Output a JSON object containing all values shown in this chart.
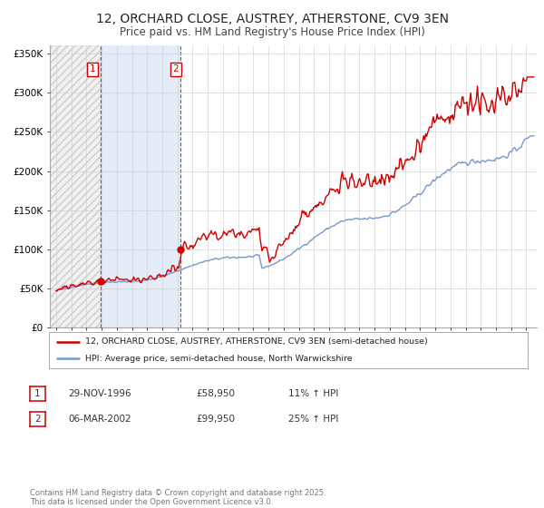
{
  "title": "12, ORCHARD CLOSE, AUSTREY, ATHERSTONE, CV9 3EN",
  "subtitle": "Price paid vs. HM Land Registry's House Price Index (HPI)",
  "title_fontsize": 10,
  "subtitle_fontsize": 8.5,
  "background_color": "#ffffff",
  "plot_bg_color": "#ffffff",
  "grid_color": "#cccccc",
  "red_line_color": "#cc0000",
  "blue_line_color": "#7799cc",
  "sale1_date": 1996.92,
  "sale1_price": 58950,
  "sale2_date": 2002.18,
  "sale2_price": 99950,
  "xmin": 1993.6,
  "xmax": 2025.7,
  "ymin": 0,
  "ymax": 360000,
  "yticks": [
    0,
    50000,
    100000,
    150000,
    200000,
    250000,
    300000,
    350000
  ],
  "ytick_labels": [
    "£0",
    "£50K",
    "£100K",
    "£150K",
    "£200K",
    "£250K",
    "£300K",
    "£350K"
  ],
  "legend_line1": "12, ORCHARD CLOSE, AUSTREY, ATHERSTONE, CV9 3EN (semi-detached house)",
  "legend_line2": "HPI: Average price, semi-detached house, North Warwickshire",
  "table_row1": [
    "1",
    "29-NOV-1996",
    "£58,950",
    "11% ↑ HPI"
  ],
  "table_row2": [
    "2",
    "06-MAR-2002",
    "£99,950",
    "25% ↑ HPI"
  ],
  "footer": "Contains HM Land Registry data © Crown copyright and database right 2025.\nThis data is licensed under the Open Government Licence v3.0."
}
